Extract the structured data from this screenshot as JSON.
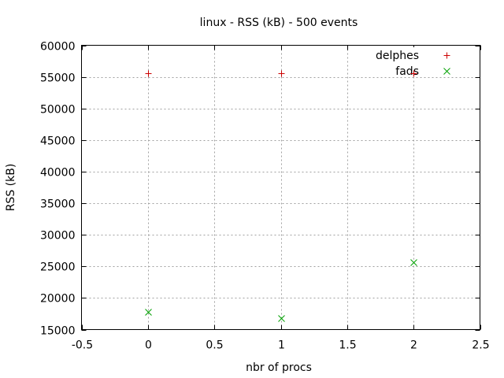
{
  "chart_data": {
    "type": "scatter",
    "title": "linux - RSS (kB) - 500 events",
    "xlabel": "nbr of procs",
    "ylabel": "RSS (kB)",
    "xlim": [
      -0.5,
      2.5
    ],
    "ylim": [
      15000,
      60000
    ],
    "xticks": [
      -0.5,
      0,
      0.5,
      1,
      1.5,
      2,
      2.5
    ],
    "xtick_labels": [
      "-0.5",
      "0",
      "0.5",
      "1",
      "1.5",
      "2",
      "2.5"
    ],
    "yticks": [
      15000,
      20000,
      25000,
      30000,
      35000,
      40000,
      45000,
      50000,
      55000,
      60000
    ],
    "ytick_labels": [
      "15000",
      "20000",
      "25000",
      "30000",
      "35000",
      "40000",
      "45000",
      "50000",
      "55000",
      "60000"
    ],
    "grid": true,
    "legend_position": "top-right",
    "series": [
      {
        "name": "delphes",
        "marker": "plus",
        "color": "#cc0000",
        "x": [
          0,
          1,
          2
        ],
        "y": [
          55600,
          55600,
          55600
        ]
      },
      {
        "name": "fads",
        "marker": "cross",
        "color": "#00a000",
        "x": [
          0,
          1,
          2
        ],
        "y": [
          17800,
          16800,
          25600
        ]
      }
    ]
  }
}
